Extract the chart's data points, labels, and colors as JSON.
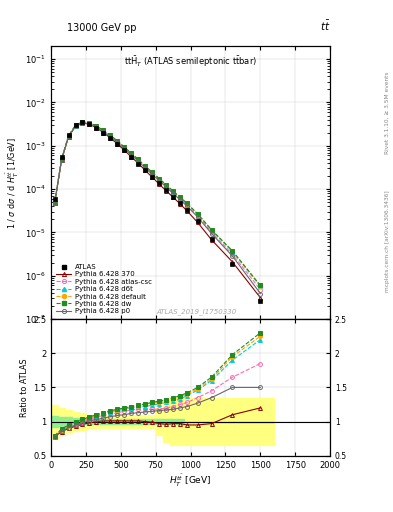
{
  "title_top": "13000 GeV pp",
  "title_top_right": "$t\\bar{t}$",
  "plot_title": "tt$\\bar{H}$T (ATLAS semileptonic t$\\bar{t}$bar)",
  "xlabel": "$H_T^{t\\bar{t}}$ [GeV]",
  "ylabel_main": "1 / $\\sigma$ d$\\sigma$ / d $H_T^{t\\bar{t}}$ [1/GeV]",
  "ylabel_ratio": "Ratio to ATLAS",
  "watermark": "ATLAS_2019_I1750330",
  "right_label1": "Rivet 3.1.10, ≥ 3.5M events",
  "right_label2": "mcplots.cern.ch [arXiv:1306.3436]",
  "xdata": [
    25,
    75,
    125,
    175,
    225,
    275,
    325,
    375,
    425,
    475,
    525,
    575,
    625,
    675,
    725,
    775,
    825,
    875,
    925,
    975,
    1050,
    1150,
    1300,
    1500
  ],
  "bin_lo": [
    0,
    50,
    100,
    150,
    200,
    250,
    300,
    350,
    400,
    450,
    500,
    550,
    600,
    650,
    700,
    750,
    800,
    850,
    900,
    950,
    1000,
    1100,
    1200,
    1400
  ],
  "bin_hi": [
    50,
    100,
    150,
    200,
    250,
    300,
    350,
    400,
    450,
    500,
    550,
    600,
    650,
    700,
    750,
    800,
    850,
    900,
    950,
    1000,
    1100,
    1200,
    1400,
    1600
  ],
  "atlas_y": [
    6e-05,
    0.00055,
    0.0018,
    0.003,
    0.0035,
    0.0032,
    0.0026,
    0.002,
    0.0015,
    0.0011,
    0.00078,
    0.00055,
    0.00039,
    0.00027,
    0.00019,
    0.000135,
    9.5e-05,
    6.7e-05,
    4.7e-05,
    3.3e-05,
    1.8e-05,
    7e-06,
    1.9e-06,
    2.6e-07
  ],
  "py370_ratio": [
    0.78,
    0.85,
    0.9,
    0.93,
    0.96,
    0.98,
    1.0,
    1.01,
    1.01,
    1.01,
    1.01,
    1.01,
    1.01,
    1.0,
    0.99,
    0.97,
    0.96,
    0.97,
    0.97,
    0.95,
    0.95,
    0.97,
    1.1,
    1.2
  ],
  "py_atlascsc_ratio": [
    0.78,
    0.88,
    0.93,
    0.97,
    1.0,
    1.03,
    1.06,
    1.09,
    1.11,
    1.13,
    1.15,
    1.17,
    1.18,
    1.18,
    1.18,
    1.18,
    1.2,
    1.22,
    1.25,
    1.28,
    1.35,
    1.45,
    1.65,
    1.85
  ],
  "py_d6t_ratio": [
    0.78,
    0.88,
    0.94,
    0.98,
    1.02,
    1.05,
    1.08,
    1.11,
    1.14,
    1.16,
    1.18,
    1.2,
    1.21,
    1.22,
    1.24,
    1.26,
    1.28,
    1.3,
    1.33,
    1.38,
    1.46,
    1.6,
    1.9,
    2.2
  ],
  "py_default_ratio": [
    0.78,
    0.88,
    0.94,
    0.99,
    1.02,
    1.06,
    1.09,
    1.12,
    1.15,
    1.17,
    1.19,
    1.21,
    1.23,
    1.25,
    1.27,
    1.28,
    1.3,
    1.33,
    1.36,
    1.4,
    1.48,
    1.62,
    1.95,
    2.25
  ],
  "py_dw_ratio": [
    0.79,
    0.89,
    0.95,
    1.0,
    1.03,
    1.07,
    1.1,
    1.13,
    1.16,
    1.18,
    1.2,
    1.22,
    1.24,
    1.26,
    1.28,
    1.3,
    1.32,
    1.35,
    1.38,
    1.42,
    1.5,
    1.65,
    1.98,
    2.3
  ],
  "py_p0_ratio": [
    0.78,
    0.86,
    0.91,
    0.95,
    0.98,
    1.01,
    1.03,
    1.05,
    1.07,
    1.09,
    1.1,
    1.12,
    1.13,
    1.14,
    1.15,
    1.16,
    1.17,
    1.18,
    1.2,
    1.22,
    1.27,
    1.35,
    1.5,
    1.5
  ],
  "band_x": [
    0,
    50,
    100,
    150,
    200,
    250,
    300,
    350,
    400,
    450,
    500,
    550,
    600,
    650,
    700,
    750,
    800,
    850,
    900,
    950,
    1000,
    1100,
    1200,
    1400,
    1600
  ],
  "yg_lo": [
    0.92,
    0.94,
    0.94,
    0.95,
    0.96,
    0.97,
    0.97,
    0.97,
    0.97,
    0.97,
    0.97,
    0.97,
    0.97,
    0.97,
    0.97,
    0.97,
    0.97,
    0.97,
    0.97,
    1.0,
    1.0,
    1.0,
    1.0,
    1.0,
    1.0
  ],
  "yg_hi": [
    1.08,
    1.06,
    1.06,
    1.05,
    1.04,
    1.03,
    1.03,
    1.03,
    1.03,
    1.03,
    1.03,
    1.03,
    1.03,
    1.03,
    1.03,
    1.03,
    1.03,
    1.03,
    1.03,
    1.0,
    1.0,
    1.0,
    1.0,
    1.0,
    1.0
  ],
  "yy_lo": [
    0.76,
    0.8,
    0.83,
    0.86,
    0.88,
    0.9,
    0.91,
    0.91,
    0.91,
    0.91,
    0.91,
    0.91,
    0.91,
    0.91,
    0.91,
    0.8,
    0.7,
    0.65,
    0.65,
    0.65,
    0.65,
    0.65,
    0.65,
    0.65,
    0.65
  ],
  "yy_hi": [
    1.24,
    1.2,
    1.17,
    1.14,
    1.12,
    1.1,
    1.09,
    1.09,
    1.09,
    1.09,
    1.09,
    1.09,
    1.09,
    1.09,
    1.09,
    1.2,
    1.3,
    1.35,
    1.35,
    1.35,
    1.35,
    1.35,
    1.35,
    1.35,
    1.35
  ],
  "xlim": [
    0,
    2000
  ],
  "ylim_main": [
    1e-07,
    0.2
  ],
  "ylim_ratio": [
    0.5,
    2.5
  ],
  "color_atlas": "#000000",
  "color_370": "#8b0000",
  "color_atlascsc": "#ff69b4",
  "color_d6t": "#00ced1",
  "color_default": "#ffa500",
  "color_dw": "#228b22",
  "color_p0": "#696969",
  "color_green": "#90ee90",
  "color_yellow": "#ffff80"
}
